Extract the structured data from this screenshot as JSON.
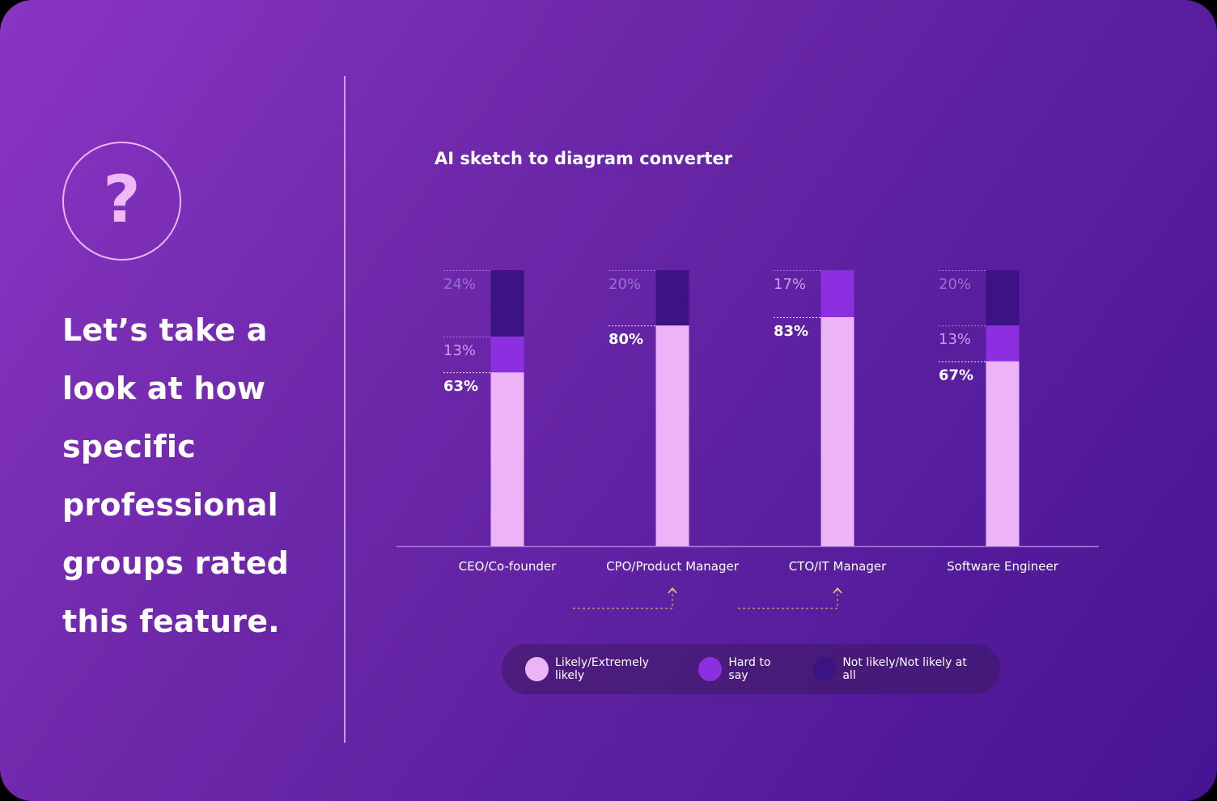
{
  "headline": "Let’s take a look at how specific professional groups rated this feature.",
  "icon": "question-mark-icon",
  "colors": {
    "likely": "#ecb3f6",
    "hard": "#8c2fe0",
    "not_likely": "#3c1382"
  },
  "chart_data": {
    "type": "bar",
    "stacked": true,
    "title": "AI sketch to diagram converter",
    "categories": [
      "CEO/Co-founder",
      "CPO/Product Manager",
      "CTO/IT Manager",
      "Software Engineer"
    ],
    "series": [
      {
        "name": "Likely/Extremely likely",
        "values": [
          63,
          80,
          83,
          67
        ],
        "labels": [
          "63%",
          "80%",
          "83%",
          "67%"
        ]
      },
      {
        "name": "Hard to say",
        "values": [
          13,
          0,
          17,
          13
        ],
        "labels": [
          "13%",
          "",
          "17%",
          "13%"
        ]
      },
      {
        "name": "Not likely/Not likely at all",
        "values": [
          24,
          20,
          0,
          20
        ],
        "labels": [
          "24%",
          "20%",
          "",
          "20%"
        ]
      }
    ],
    "ylim": [
      0,
      100
    ],
    "grid": false,
    "legend": "bottom"
  }
}
